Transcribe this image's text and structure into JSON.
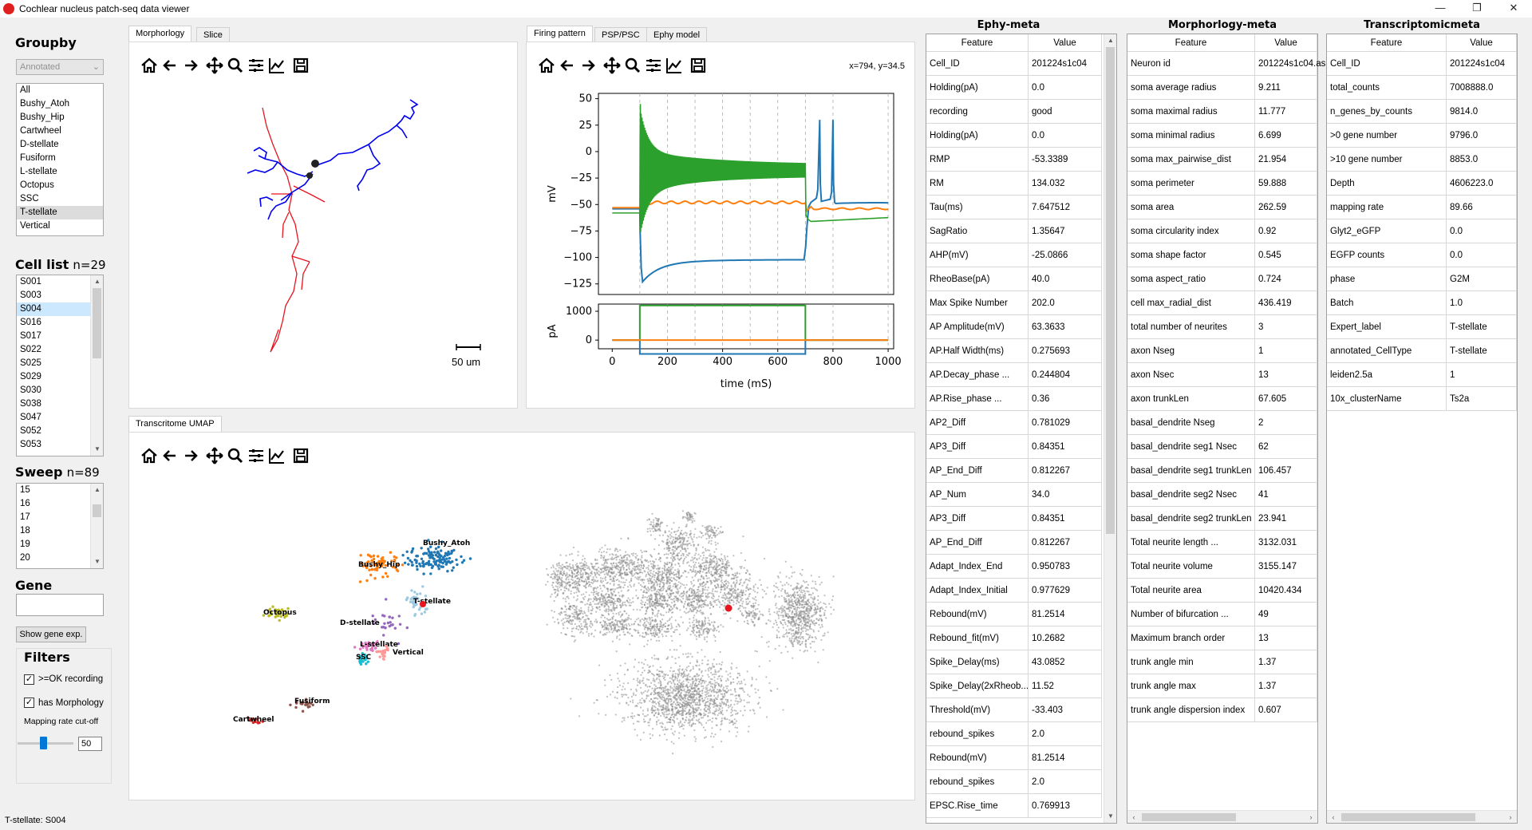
{
  "window": {
    "title": "Cochlear nucleus patch-seq data viewer",
    "buttons": [
      "—",
      "❐",
      "✕"
    ]
  },
  "left": {
    "groupby_label": "Groupby",
    "groupby_select": "Annotated",
    "groups": [
      "All",
      "Bushy_Atoh",
      "Bushy_Hip",
      "Cartwheel",
      "D-stellate",
      "Fusiform",
      "L-stellate",
      "Octopus",
      "SSC",
      "T-stellate",
      "Vertical"
    ],
    "groups_selected": "T-stellate",
    "celllist_label": "Cell list",
    "celllist_count": "n=29",
    "cells": [
      "S001",
      "S003",
      "S004",
      "S016",
      "S017",
      "S022",
      "S025",
      "S029",
      "S030",
      "S038",
      "S047",
      "S052",
      "S053"
    ],
    "cells_selected": "S004",
    "sweep_label": "Sweep",
    "sweep_count": "n=89",
    "sweeps": [
      "15",
      "16",
      "17",
      "18",
      "19",
      "20"
    ],
    "gene_label": "Gene",
    "gene_value": "",
    "show_gene_btn": "Show gene exp.",
    "filters_label": "Filters",
    "filter_ok_recording": ">=OK recording",
    "filter_has_morph": "has Morphology",
    "mapping_label": "Mapping rate cut-off",
    "mapping_value": "50",
    "slider_fraction": 0.45
  },
  "morph_panel": {
    "tabs": [
      "Morphorlogy",
      "Slice"
    ],
    "scale_label": "50 um"
  },
  "firing_panel": {
    "tabs": [
      "Firing pattern",
      "PSP/PSC",
      "Ephy model"
    ],
    "coords": "x=794, y=34.5",
    "ylabel_top": "mV",
    "ylabel_bottom": "pA",
    "xlabel": "time (mS)",
    "yticks_top": [
      "50",
      "25",
      "0",
      "−25",
      "−50",
      "−75",
      "−100",
      "−125"
    ],
    "yticks_bottom": [
      "1000",
      "0"
    ],
    "xticks": [
      "0",
      "200",
      "400",
      "600",
      "800",
      "1000"
    ]
  },
  "umap_panel": {
    "tab": "Transcritome UMAP",
    "clusters": [
      "Bushy_Atoh",
      "Bushy_Hip",
      "T-stellate",
      "Octopus",
      "D-stellate",
      "L-stellate",
      "SSC",
      "Vertical",
      "Fusiform",
      "Cartwheel"
    ]
  },
  "ephy": {
    "title": "Ephy-meta",
    "headers": [
      "Feature",
      "Value"
    ],
    "rows": [
      [
        "Cell_ID",
        "201224s1c04"
      ],
      [
        "Holding(pA)",
        "0.0"
      ],
      [
        "recording",
        "good"
      ],
      [
        "Holding(pA)",
        "0.0"
      ],
      [
        "RMP",
        "-53.3389"
      ],
      [
        "RM",
        "134.032"
      ],
      [
        "Tau(ms)",
        "7.647512"
      ],
      [
        "SagRatio",
        "1.35647"
      ],
      [
        "AHP(mV)",
        "-25.0866"
      ],
      [
        "RheoBase(pA)",
        "40.0"
      ],
      [
        "Max Spike Number",
        "202.0"
      ],
      [
        "AP Amplitude(mV)",
        "63.3633"
      ],
      [
        "AP.Half Width(ms)",
        "0.275693"
      ],
      [
        "AP.Decay_phase ...",
        "0.244804"
      ],
      [
        "AP.Rise_phase ...",
        "0.36"
      ],
      [
        "AP2_Diff",
        "0.781029"
      ],
      [
        "AP3_Diff",
        "0.84351"
      ],
      [
        "AP_End_Diff",
        "0.812267"
      ],
      [
        "AP_Num",
        "34.0"
      ],
      [
        "AP3_Diff",
        "0.84351"
      ],
      [
        "AP_End_Diff",
        "0.812267"
      ],
      [
        "Adapt_Index_End",
        "0.950783"
      ],
      [
        "Adapt_Index_Initial",
        "0.977629"
      ],
      [
        "Rebound(mV)",
        "81.2514"
      ],
      [
        "Rebound_fit(mV)",
        "10.2682"
      ],
      [
        "Spike_Delay(ms)",
        "43.0852"
      ],
      [
        "Spike_Delay(2xRheob...",
        "11.52"
      ],
      [
        "Threshold(mV)",
        "-33.403"
      ],
      [
        "rebound_spikes",
        "2.0"
      ],
      [
        "Rebound(mV)",
        "81.2514"
      ],
      [
        "rebound_spikes",
        "2.0"
      ],
      [
        "EPSC.Rise_time",
        "0.769913"
      ]
    ]
  },
  "morpho": {
    "title": "Morphorlogy-meta",
    "headers": [
      "Feature",
      "Value"
    ],
    "rows": [
      [
        "Neuron id",
        "201224s1c04.as"
      ],
      [
        "soma average radius",
        "9.211"
      ],
      [
        "soma maximal radius",
        "11.777"
      ],
      [
        "soma minimal radius",
        "6.699"
      ],
      [
        "soma max_pairwise_dist",
        "21.954"
      ],
      [
        "soma perimeter",
        "59.888"
      ],
      [
        "soma area",
        "262.59"
      ],
      [
        "soma circularity index",
        "0.92"
      ],
      [
        "soma shape factor",
        "0.545"
      ],
      [
        "soma aspect_ratio",
        "0.724"
      ],
      [
        "cell max_radial_dist",
        "436.419"
      ],
      [
        "total number of neurites",
        "3"
      ],
      [
        "axon Nseg",
        "1"
      ],
      [
        "axon Nsec",
        "13"
      ],
      [
        "axon trunkLen",
        "67.605"
      ],
      [
        "basal_dendrite Nseg",
        "2"
      ],
      [
        "basal_dendrite seg1 Nsec",
        "62"
      ],
      [
        "basal_dendrite seg1 trunkLen",
        "106.457"
      ],
      [
        "basal_dendrite seg2 Nsec",
        "41"
      ],
      [
        "basal_dendrite seg2 trunkLen",
        "23.941"
      ],
      [
        "Total neurite length ...",
        "3132.031"
      ],
      [
        "Total neurite volume",
        "3155.147"
      ],
      [
        "Total neurite area",
        "10420.434"
      ],
      [
        "Number of bifurcation ...",
        "49"
      ],
      [
        "Maximum branch order",
        "13"
      ],
      [
        "trunk angle min",
        "1.37"
      ],
      [
        "trunk angle max",
        "1.37"
      ],
      [
        "trunk angle dispersion index",
        "0.607"
      ]
    ]
  },
  "transcript": {
    "title": "Transcriptomicmeta",
    "headers": [
      "Feature",
      "Value"
    ],
    "rows": [
      [
        "Cell_ID",
        "201224s1c04"
      ],
      [
        "total_counts",
        "7008888.0"
      ],
      [
        "n_genes_by_counts",
        "9814.0"
      ],
      [
        ">0 gene number",
        "9796.0"
      ],
      [
        ">10 gene number",
        "8853.0"
      ],
      [
        "Depth",
        "4606223.0"
      ],
      [
        "mapping rate",
        "89.66"
      ],
      [
        "Glyt2_eGFP",
        "0.0"
      ],
      [
        "EGFP counts",
        "0.0"
      ],
      [
        "phase",
        "G2M"
      ],
      [
        "Batch",
        "1.0"
      ],
      [
        "Expert_label",
        "T-stellate"
      ],
      [
        "annotated_CellType",
        "T-stellate"
      ],
      [
        "leiden2.5a",
        "1"
      ],
      [
        "10x_clusterName",
        "Ts2a"
      ]
    ]
  },
  "status": "T-stellate: S004",
  "colors": {
    "blue": "#1f77b4",
    "orange": "#ff7f0e",
    "green": "#2ca02c",
    "red": "#e8141e",
    "dendrite": "#0000ee",
    "axon": "#e8141e"
  }
}
